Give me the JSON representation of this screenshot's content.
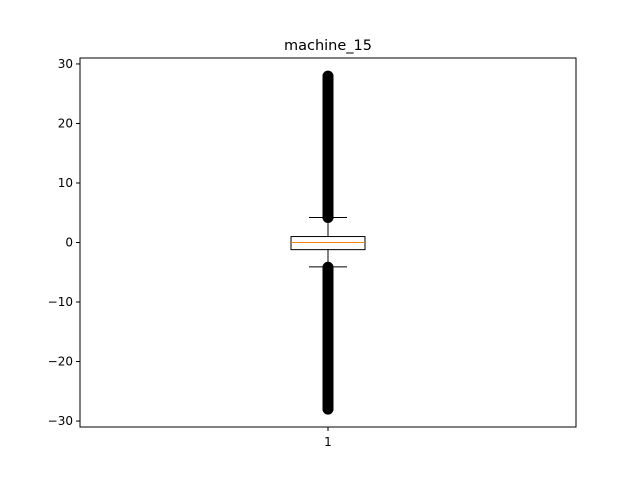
{
  "chart_data": {
    "type": "box",
    "title": "machine_15",
    "xlabel": "",
    "ylabel": "",
    "categories": [
      "1"
    ],
    "ylim": [
      -31,
      31
    ],
    "yticks": [
      -30,
      -20,
      -10,
      0,
      10,
      20,
      30
    ],
    "ytick_labels": [
      "−30",
      "−20",
      "−10",
      "0",
      "10",
      "20",
      "30"
    ],
    "boxes": [
      {
        "category": "1",
        "median": 0.0,
        "q1": -1.2,
        "q3": 1.0,
        "whisker_low": -4.1,
        "whisker_high": 4.2,
        "outliers_high_range": [
          4.2,
          28
        ],
        "outliers_low_range": [
          -28,
          -4.1
        ]
      }
    ],
    "grid": false,
    "colors": {
      "box": "#000000",
      "median": "#ff7f0e",
      "outlier": "#000000"
    }
  }
}
